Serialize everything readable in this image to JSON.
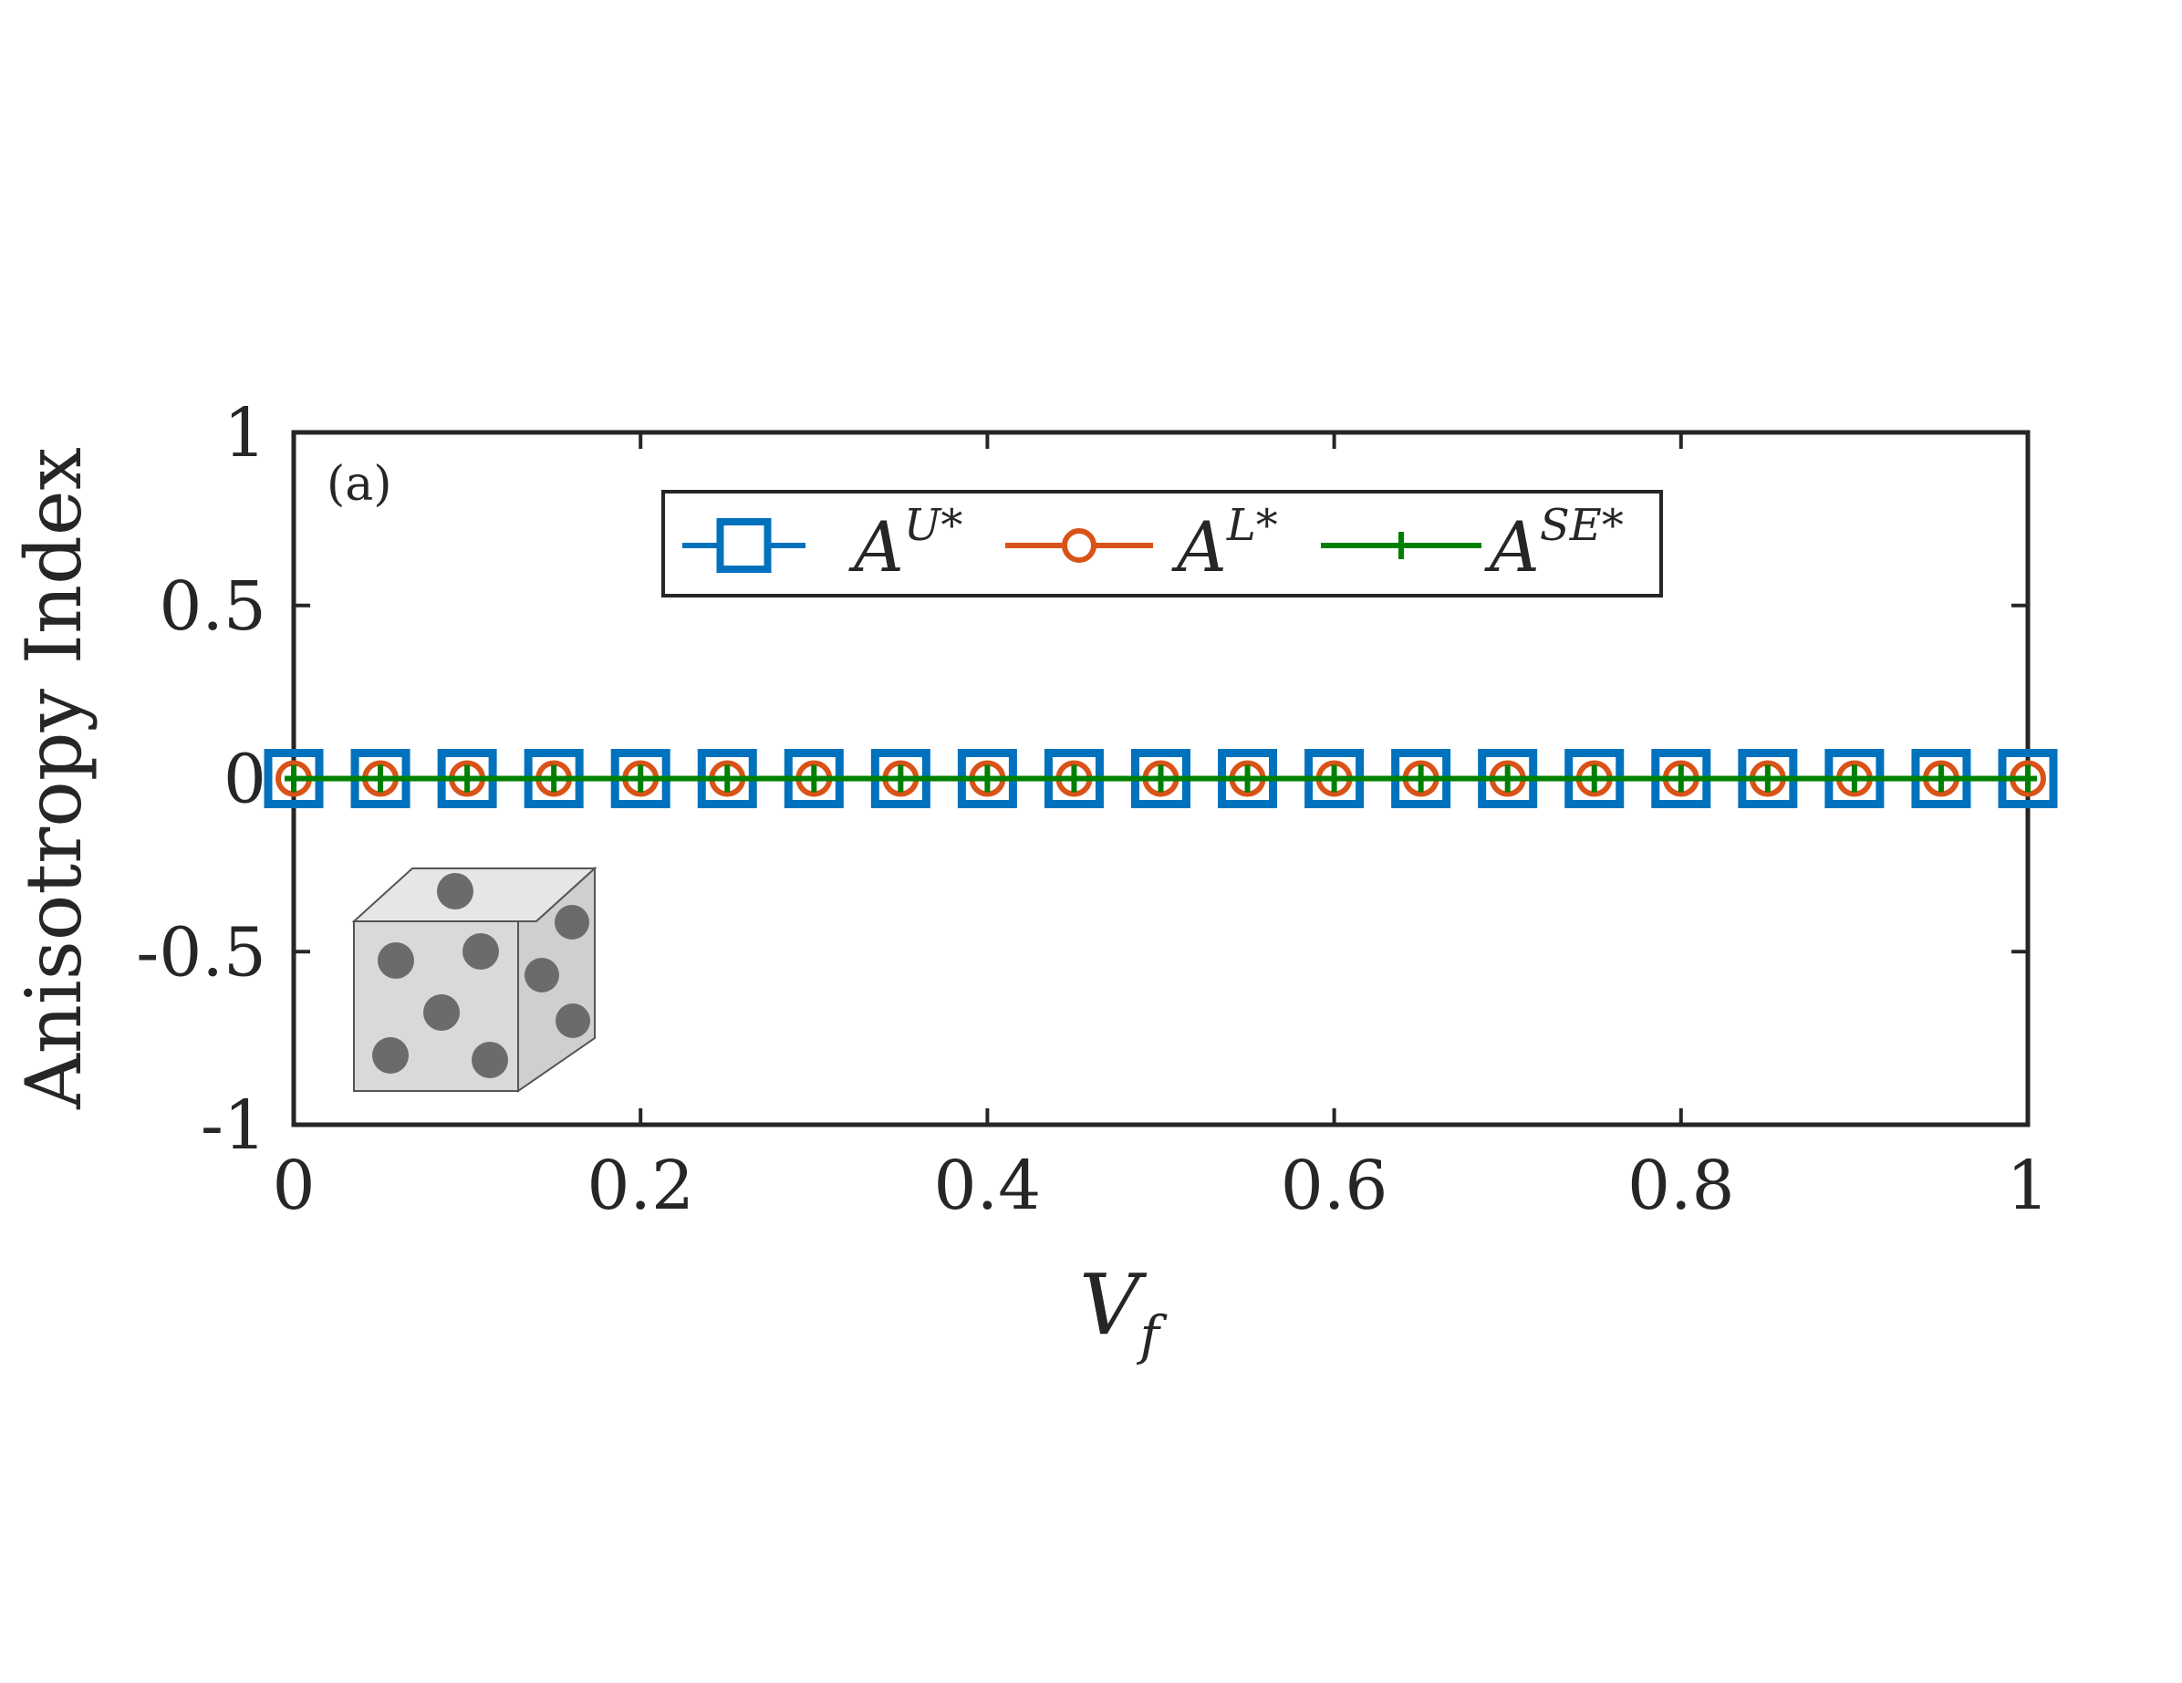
{
  "chart_data": {
    "type": "line",
    "panel_label": "(a)",
    "xlabel": "V",
    "xlabel_sub": "f",
    "ylabel": "Anisotropy Index",
    "xlim": [
      0,
      1
    ],
    "ylim": [
      -1,
      1
    ],
    "xticks": [
      0,
      0.2,
      0.4,
      0.6,
      0.8,
      1
    ],
    "xtick_labels": [
      "0",
      "0.2",
      "0.4",
      "0.6",
      "0.8",
      "1"
    ],
    "yticks": [
      1,
      0.5,
      0,
      -0.5,
      -1
    ],
    "ytick_labels": [
      "1",
      "0.5",
      "0",
      "-0.5",
      "-1"
    ],
    "grid": false,
    "legend_position": "top",
    "x": [
      0,
      0.05,
      0.1,
      0.15,
      0.2,
      0.25,
      0.3,
      0.35,
      0.4,
      0.45,
      0.5,
      0.55,
      0.6,
      0.65,
      0.7,
      0.75,
      0.8,
      0.85,
      0.9,
      0.95,
      1
    ],
    "series": [
      {
        "name": "A",
        "name_sup": "U*",
        "color": "#0072BD",
        "marker": "square",
        "values": [
          0,
          0,
          0,
          0,
          0,
          0,
          0,
          0,
          0,
          0,
          0,
          0,
          0,
          0,
          0,
          0,
          0,
          0,
          0,
          0,
          0
        ]
      },
      {
        "name": "A",
        "name_sup": "L*",
        "color": "#D95319",
        "marker": "circle",
        "values": [
          0,
          0,
          0,
          0,
          0,
          0,
          0,
          0,
          0,
          0,
          0,
          0,
          0,
          0,
          0,
          0,
          0,
          0,
          0,
          0,
          0
        ]
      },
      {
        "name": "A",
        "name_sup": "SE*",
        "color": "#008000",
        "marker": "plus",
        "values": [
          0,
          0,
          0,
          0,
          0,
          0,
          0,
          0,
          0,
          0,
          0,
          0,
          0,
          0,
          0,
          0,
          0,
          0,
          0,
          0,
          0
        ]
      }
    ],
    "inset": {
      "description_icon": "cube-with-spherical-particles-icon",
      "face_color": "#d9d9d9",
      "particle_color": "#6b6b6b"
    }
  }
}
